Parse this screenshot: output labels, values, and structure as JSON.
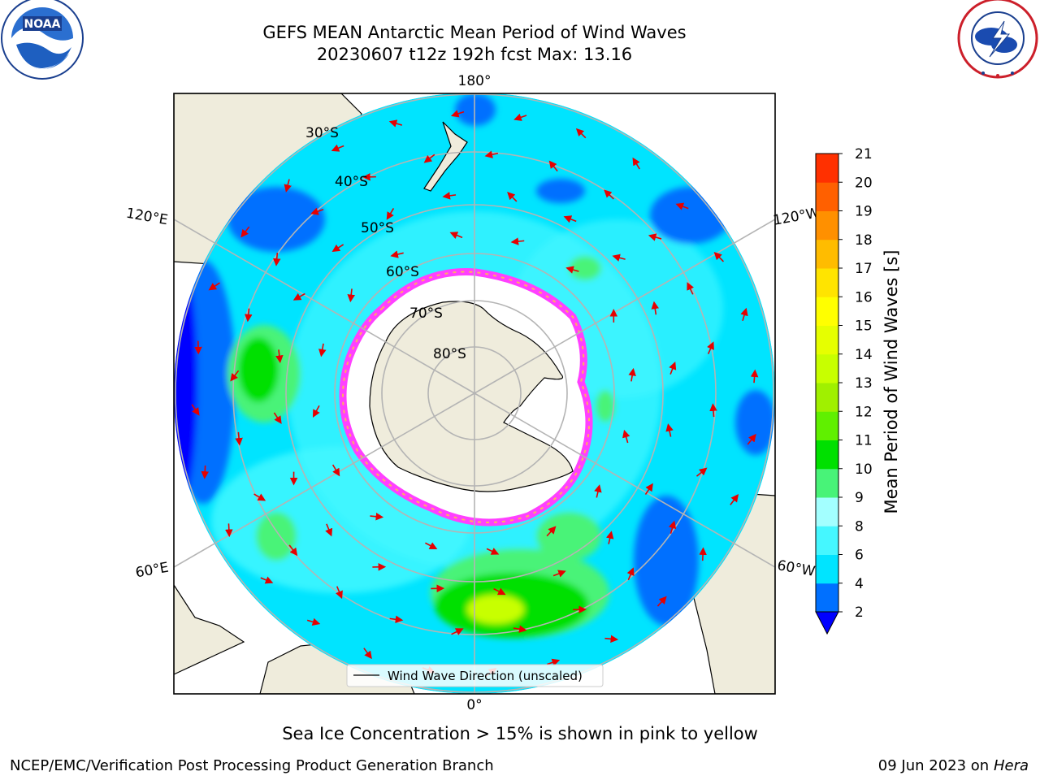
{
  "header": {
    "title_line1": "GEFS MEAN Antarctic Mean Period of Wind Waves",
    "title_line2": "20230607 t12z 192h fcst   Max: 13.16"
  },
  "logos": {
    "left": {
      "name": "NOAA",
      "ring_text": "NATIONAL OCEANIC AND ATMOSPHERIC ADMINISTRATION · U.S. DEPARTMENT OF COMMERCE"
    },
    "right": {
      "name": "NATIONAL WEATHER SERVICE"
    }
  },
  "map": {
    "projection": "south polar stereographic",
    "longitude_labels": {
      "top": "180°",
      "bottom": "0°",
      "upper_left": "120°E",
      "upper_right": "120°W",
      "lower_left": "60°E",
      "lower_right": "60°W"
    },
    "latitude_labels": [
      "30°S",
      "40°S",
      "50°S",
      "60°S",
      "70°S",
      "80°S"
    ],
    "legend_label": "Wind Wave Direction (unscaled)",
    "colors": {
      "land": "#efecdc",
      "ice_edge_pink": "#ff40ff",
      "ice_edge_orange": "#ffb060",
      "arrow": "#e60000",
      "grid": "#b4b4b4"
    }
  },
  "colorbar": {
    "label": "Mean Period of Wind Waves [s]",
    "ticks": [
      "2",
      "4",
      "6",
      "8",
      "9",
      "10",
      "11",
      "12",
      "13",
      "14",
      "15",
      "16",
      "17",
      "18",
      "19",
      "20",
      "21"
    ],
    "colors": [
      "#0070ff",
      "#00e4ff",
      "#45f7ff",
      "#a3ffff",
      "#48f378",
      "#00e000",
      "#60f000",
      "#a0f000",
      "#c8ff00",
      "#e6ff00",
      "#ffff00",
      "#ffe400",
      "#ffbc00",
      "#ff9000",
      "#ff6000",
      "#ff3000"
    ],
    "under_color": "#0000ff"
  },
  "footer": {
    "note": "Sea Ice Concentration > 15% is shown in pink to yellow",
    "credit": "NCEP/EMC/Verification Post Processing Product Generation Branch",
    "date": "09 Jun 2023 on",
    "host": "Hera"
  }
}
